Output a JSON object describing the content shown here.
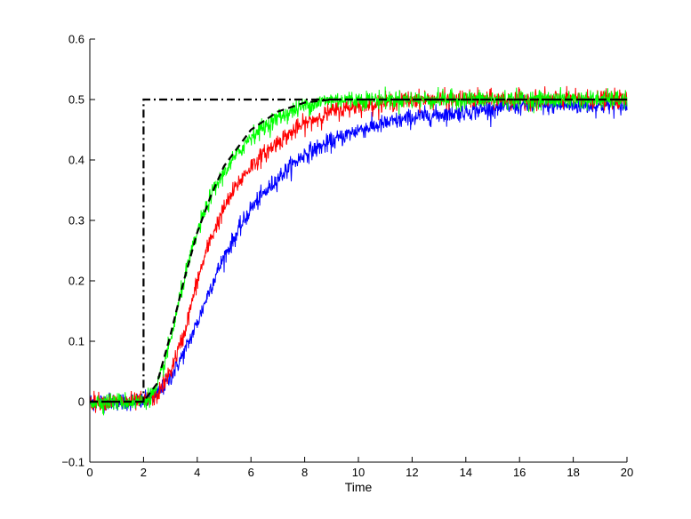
{
  "chart_data": {
    "type": "line",
    "title": "",
    "xlabel": "Time",
    "ylabel": "",
    "xlim": [
      0,
      20
    ],
    "ylim": [
      -0.1,
      0.6
    ],
    "grid": false,
    "xticks": [
      0,
      2,
      4,
      6,
      8,
      10,
      12,
      14,
      16,
      18,
      20
    ],
    "yticks": [
      -0.1,
      0,
      0.1,
      0.2,
      0.3,
      0.4,
      0.5,
      0.6
    ],
    "xtick_labels": [
      "0",
      "2",
      "4",
      "6",
      "8",
      "10",
      "12",
      "14",
      "16",
      "18",
      "20"
    ],
    "ytick_labels": [
      "−0.1",
      "0",
      "0.1",
      "0.2",
      "0.3",
      "0.4",
      "0.5",
      "0.6"
    ],
    "series": [
      {
        "color": "#000000",
        "style": "dash-dot",
        "x": [
          0,
          2,
          2,
          20
        ],
        "y": [
          0,
          0,
          0.5,
          0.5
        ]
      },
      {
        "color": "#000000",
        "style": "dashed",
        "x": [
          0,
          2,
          2.5,
          3,
          3.5,
          4,
          4.5,
          5,
          5.5,
          6,
          7,
          8,
          9,
          10,
          20
        ],
        "y": [
          0,
          0,
          0.03,
          0.11,
          0.2,
          0.28,
          0.34,
          0.39,
          0.42,
          0.45,
          0.48,
          0.495,
          0.5,
          0.5,
          0.5
        ]
      },
      {
        "color": "#00ff00",
        "style": "noisy",
        "x": [
          0,
          2,
          2.5,
          3,
          3.5,
          4,
          4.5,
          5,
          5.5,
          6,
          7,
          8,
          9,
          10,
          12,
          14,
          16,
          18,
          20
        ],
        "y": [
          0,
          0,
          0.02,
          0.1,
          0.2,
          0.28,
          0.34,
          0.38,
          0.41,
          0.44,
          0.47,
          0.49,
          0.5,
          0.5,
          0.5,
          0.5,
          0.5,
          0.5,
          0.5
        ]
      },
      {
        "color": "#ff0000",
        "style": "noisy",
        "x": [
          0,
          2,
          2.5,
          3,
          3.5,
          4,
          4.5,
          5,
          5.5,
          6,
          7,
          8,
          9,
          10,
          12,
          14,
          16,
          18,
          20
        ],
        "y": [
          0,
          0,
          0.01,
          0.05,
          0.11,
          0.2,
          0.27,
          0.32,
          0.36,
          0.39,
          0.43,
          0.46,
          0.48,
          0.49,
          0.5,
          0.5,
          0.5,
          0.5,
          0.5
        ]
      },
      {
        "color": "#0000ff",
        "style": "noisy",
        "x": [
          0,
          2,
          2.5,
          3,
          3.5,
          4,
          4.5,
          5,
          5.5,
          6,
          7,
          8,
          9,
          10,
          11,
          12,
          14,
          16,
          18,
          20
        ],
        "y": [
          0,
          0,
          0.01,
          0.04,
          0.08,
          0.13,
          0.19,
          0.24,
          0.28,
          0.32,
          0.37,
          0.41,
          0.43,
          0.45,
          0.46,
          0.47,
          0.48,
          0.49,
          0.49,
          0.49
        ]
      }
    ]
  }
}
